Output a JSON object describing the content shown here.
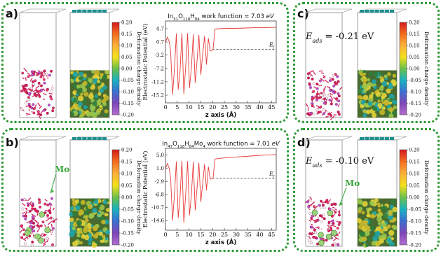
{
  "panels": {
    "a": {
      "label": "a)"
    },
    "b": {
      "label": "b)",
      "atom": "Mo"
    },
    "c": {
      "label": "c)",
      "energy": "= -0.21 eV"
    },
    "d": {
      "label": "d)",
      "energy": "= -0.10 eV",
      "atom": "Mo"
    }
  },
  "eads_symbol": "E",
  "eads_sub": "ads",
  "colorbar": {
    "title": "Deformation charge density",
    "ticks": [
      "0.20",
      "0.15",
      "0.10",
      "0.05",
      "0.00",
      "-0.05",
      "-0.10",
      "-0.15",
      "-0.20"
    ],
    "colors": [
      "#d7191c",
      "#f26d21",
      "#fbb03b",
      "#f3e01c",
      "#6cc04a",
      "#1bb1c1",
      "#3b6fd0",
      "#7d46b8",
      "#b36fd0"
    ]
  },
  "chart_data": [
    {
      "type": "line",
      "title_formula": [
        [
          "In",
          ""
        ],
        [
          "51",
          "sub"
        ],
        [
          "O",
          ""
        ],
        [
          "118",
          "sub"
        ],
        [
          "H",
          ""
        ],
        [
          "84",
          "sub"
        ]
      ],
      "title_rest": " work function = 7.03 ",
      "title_unit": "eV",
      "xlabel": "z axis (Å)",
      "ylabel": "Electrostatic Potential (eV)",
      "xlim": [
        0,
        47
      ],
      "ylim": [
        -17.5,
        7.0
      ],
      "x_ticks": [
        "0",
        "5",
        "10",
        "15",
        "20",
        "25",
        "30",
        "35",
        "40",
        "45"
      ],
      "y_ticks": [
        "4.7",
        "0.7",
        "-3.2",
        "-7.2",
        "-11.2",
        "-15.2"
      ],
      "fermi_label": "E",
      "fermi_sub": "f",
      "fermi_level": -1.5,
      "series_x": [
        0,
        0.8,
        1.6,
        2.2,
        3.0,
        3.8,
        4.6,
        5.4,
        6.2,
        7.0,
        7.8,
        8.6,
        9.4,
        10.2,
        11.0,
        11.8,
        12.6,
        13.4,
        14.2,
        15.0,
        15.8,
        16.6,
        17.4,
        18.2,
        19.0,
        19.6,
        20.2,
        21.0,
        23,
        26,
        30,
        34,
        38,
        42,
        46,
        47
      ],
      "series_y": [
        0.5,
        2.2,
        0.8,
        -2.0,
        -15.0,
        -7.5,
        3.2,
        -13.5,
        -8.0,
        3.3,
        -14.8,
        -6.5,
        3.3,
        -13.0,
        -7.0,
        3.0,
        -11.5,
        -5.0,
        2.8,
        -9.0,
        -3.0,
        2.4,
        -6.0,
        1.8,
        -2.0,
        -1.8,
        -1.6,
        4.6,
        4.7,
        4.8,
        4.8,
        4.9,
        5.0,
        5.0,
        5.1,
        5.1
      ]
    },
    {
      "type": "line",
      "title_formula": [
        [
          "In",
          ""
        ],
        [
          "47",
          "sub"
        ],
        [
          "O",
          ""
        ],
        [
          "118",
          "sub"
        ],
        [
          "H",
          ""
        ],
        [
          "84",
          "sub"
        ],
        [
          "Mo",
          ""
        ],
        [
          "4",
          "sub"
        ]
      ],
      "title_rest": " work function = 7.01 ",
      "title_unit": "eV",
      "xlabel": "z axis (Å)",
      "ylabel": "Electrostatic Potential (eV)",
      "xlim": [
        0,
        47
      ],
      "ylim": [
        -17.5,
        7.0
      ],
      "x_ticks": [
        "0",
        "5",
        "10",
        "15",
        "20",
        "25",
        "30",
        "35",
        "40",
        "45"
      ],
      "y_ticks": [
        "5.0",
        "1.0",
        "-2.9",
        "-6.8",
        "-10.7",
        "-14.6"
      ],
      "fermi_label": "E",
      "fermi_sub": "f",
      "fermi_level": -2.0,
      "series_x": [
        0,
        0.8,
        1.6,
        2.2,
        3.0,
        3.8,
        4.6,
        5.4,
        6.2,
        7.0,
        7.8,
        8.6,
        9.4,
        10.2,
        11.0,
        11.8,
        12.6,
        13.4,
        14.2,
        15.0,
        15.8,
        16.6,
        17.4,
        18.2,
        19.0,
        19.6,
        20.2,
        21.0,
        23,
        26,
        30,
        34,
        38,
        42,
        46,
        47
      ],
      "series_y": [
        0.8,
        2.5,
        1.0,
        -2.0,
        -14.6,
        -7.0,
        3.0,
        -13.8,
        -7.5,
        3.2,
        -15.2,
        -6.5,
        3.1,
        -13.0,
        -6.8,
        3.0,
        -11.5,
        -5.0,
        2.6,
        -9.0,
        -3.5,
        2.2,
        -5.5,
        1.5,
        -2.2,
        -2.1,
        -2.0,
        3.8,
        4.0,
        4.2,
        4.4,
        4.6,
        4.8,
        5.0,
        5.1,
        5.2
      ]
    }
  ]
}
